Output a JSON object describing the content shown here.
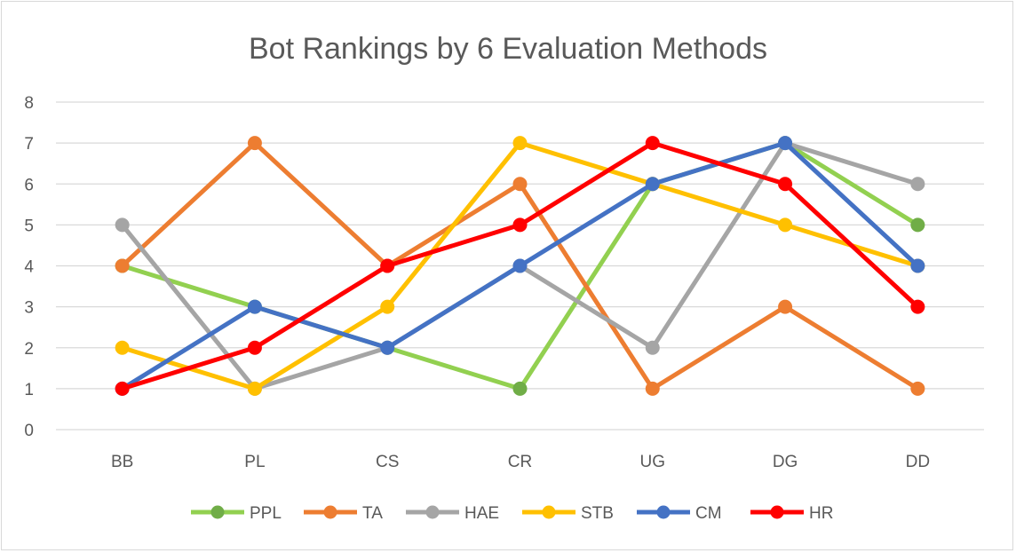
{
  "chart_data": {
    "type": "line",
    "title": "Bot Rankings by 6 Evaluation Methods",
    "xlabel": "",
    "ylabel": "",
    "categories": [
      "BB",
      "PL",
      "CS",
      "CR",
      "UG",
      "DG",
      "DD"
    ],
    "ylim": [
      0,
      8
    ],
    "yticks": [
      0,
      1,
      2,
      3,
      4,
      5,
      6,
      7,
      8
    ],
    "grid": true,
    "legend_position": "bottom",
    "series": [
      {
        "name": "PPL",
        "color": "#92d050",
        "marker_color": "#70ad47",
        "values": [
          4,
          3,
          2,
          1,
          6,
          7,
          5
        ]
      },
      {
        "name": "TA",
        "color": "#ed7d31",
        "marker_color": "#ed7d31",
        "values": [
          4,
          7,
          4,
          6,
          1,
          3,
          1
        ]
      },
      {
        "name": "HAE",
        "color": "#a5a5a5",
        "marker_color": "#a5a5a5",
        "values": [
          5,
          1,
          2,
          4,
          2,
          7,
          6
        ]
      },
      {
        "name": "STB",
        "color": "#ffc000",
        "marker_color": "#ffc000",
        "values": [
          2,
          1,
          3,
          7,
          6,
          5,
          4
        ]
      },
      {
        "name": "CM",
        "color": "#4472c4",
        "marker_color": "#4472c4",
        "values": [
          1,
          3,
          2,
          4,
          6,
          7,
          4
        ]
      },
      {
        "name": "HR",
        "color": "#ff0000",
        "marker_color": "#ff0000",
        "values": [
          1,
          2,
          4,
          5,
          7,
          6,
          3
        ]
      }
    ]
  }
}
